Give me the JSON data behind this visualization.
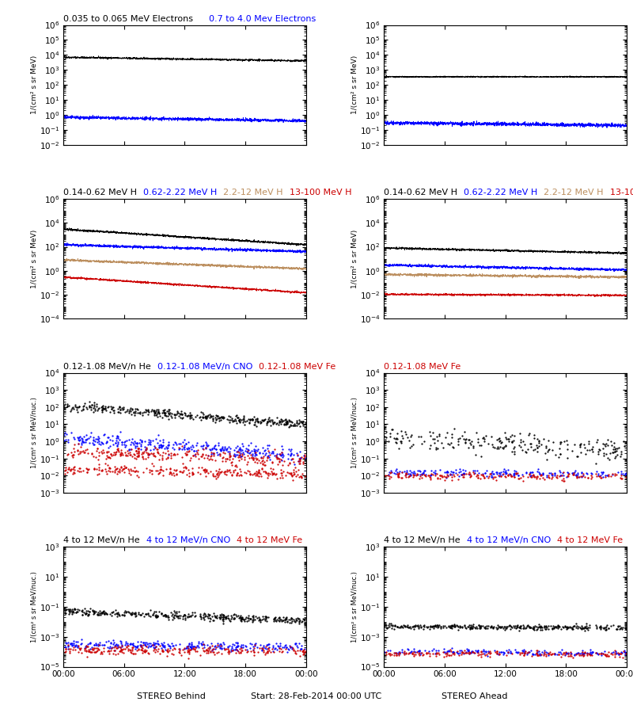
{
  "BLACK": "#000000",
  "BLUE": "#0000FF",
  "BROWN": "#BC8F5F",
  "RED": "#CC0000",
  "row0_left_title1": {
    "text": "0.035 to 0.065 MeV Electrons",
    "color": "#000000"
  },
  "row0_left_title2": {
    "text": "0.7 to 4.0 Mev Electrons",
    "color": "#0000FF"
  },
  "row1_titles": [
    {
      "text": "0.14-0.62 MeV H",
      "color": "#000000"
    },
    {
      "text": "0.62-2.22 MeV H",
      "color": "#0000FF"
    },
    {
      "text": "2.2-12 MeV H",
      "color": "#BC8F5F"
    },
    {
      "text": "13-100 MeV H",
      "color": "#CC0000"
    }
  ],
  "row2_left_titles": [
    {
      "text": "0.12-1.08 MeV/n He",
      "color": "#000000"
    },
    {
      "text": "0.12-1.08 MeV/n CNO",
      "color": "#0000FF"
    },
    {
      "text": "0.12-1.08 MeV Fe",
      "color": "#CC0000"
    }
  ],
  "row2_right_titles": [
    {
      "text": "0.12-1.08 MeV Fe",
      "color": "#CC0000"
    }
  ],
  "row3_left_titles": [
    {
      "text": "4 to 12 MeV/n He",
      "color": "#000000"
    },
    {
      "text": "4 to 12 MeV/n CNO",
      "color": "#0000FF"
    },
    {
      "text": "4 to 12 MeV Fe",
      "color": "#CC0000"
    }
  ],
  "row3_right_titles": [
    {
      "text": "4 to 12 MeV/n He",
      "color": "#000000"
    },
    {
      "text": "4 to 12 MeV/n CNO",
      "color": "#0000FF"
    },
    {
      "text": "4 to 12 MeV Fe",
      "color": "#CC0000"
    }
  ],
  "xlabel_left": "STEREO Behind",
  "xlabel_center": "Start: 28-Feb-2014 00:00 UTC",
  "xlabel_right": "STEREO Ahead",
  "xtick_labels": [
    "00:00",
    "06:00",
    "12:00",
    "18:00",
    "00:00"
  ]
}
